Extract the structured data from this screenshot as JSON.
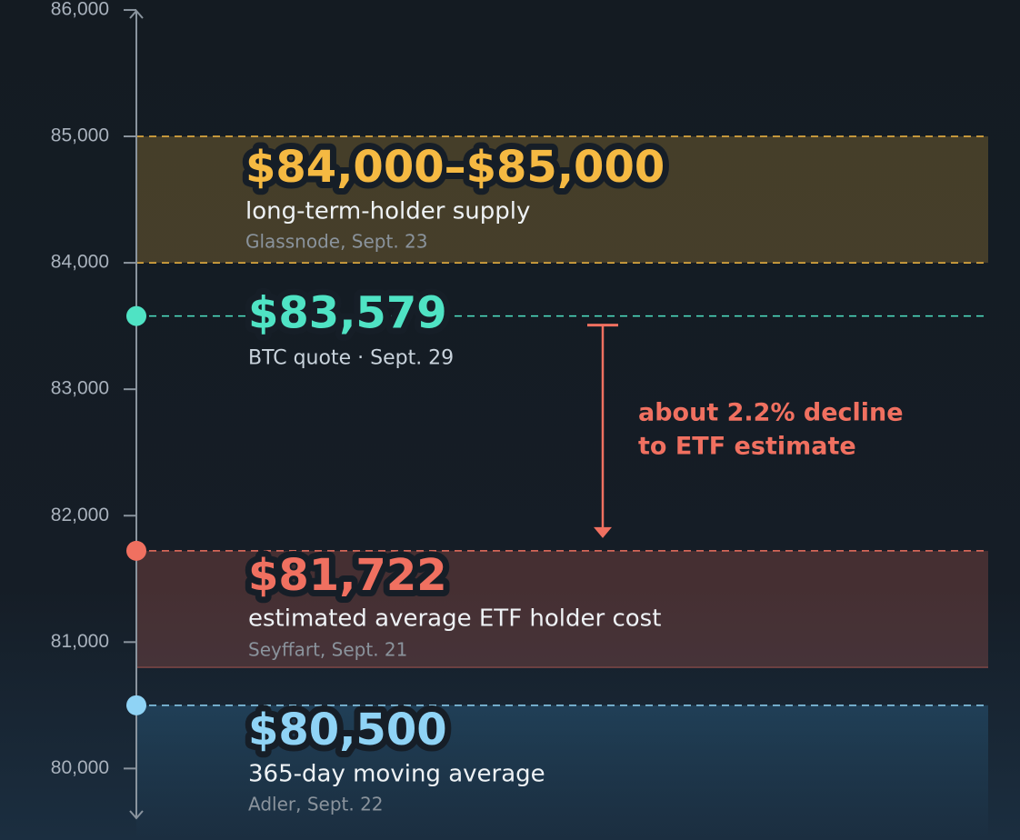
{
  "chart_data": {
    "type": "levels",
    "ylim": [
      79600,
      86050
    ],
    "yticks": [
      {
        "value": 80000,
        "label": "80,000"
      },
      {
        "value": 81000,
        "label": "81,000"
      },
      {
        "value": 82000,
        "label": "82,000"
      },
      {
        "value": 83000,
        "label": "83,000"
      },
      {
        "value": 84000,
        "label": "84,000"
      },
      {
        "value": 85000,
        "label": "85,000"
      },
      {
        "value": 86000,
        "label": "86,000"
      }
    ],
    "levels": [
      {
        "band": [
          84000,
          85000
        ],
        "value_label": "$84,000–$85,000",
        "name": "long-term-holder supply",
        "source": "Glassnode, Sept. 23",
        "color": "#f5b942"
      },
      {
        "value": 83579,
        "value_label": "$83,579",
        "name": "BTC quote · Sept. 29",
        "color": "#4fe3c4"
      },
      {
        "value": 81722,
        "band": [
          80800,
          81722
        ],
        "value_label": "$81,722",
        "name": "estimated average ETF holder cost",
        "source": "Seyffart, Sept. 21",
        "color": "#f07060"
      },
      {
        "value": 80500,
        "value_label": "$80,500",
        "name": "365-day moving average",
        "source": "Adler, Sept. 22",
        "color": "#8fd3f5"
      }
    ],
    "annotation": {
      "lines": [
        "about 2.2% decline",
        "to ETF estimate"
      ],
      "from": 1,
      "to": 2,
      "color": "#f07060"
    }
  }
}
